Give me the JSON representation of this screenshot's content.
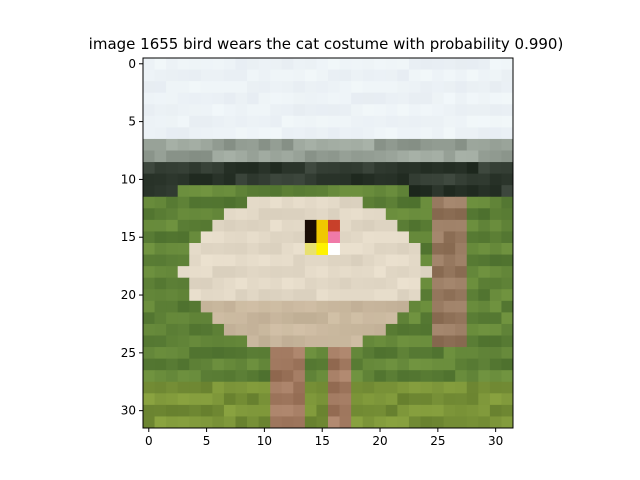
{
  "chart_data": {
    "type": "image",
    "title": "image 1655  bird wears the cat costume with probability 0.990)",
    "image_size": [
      32,
      32
    ],
    "xlim": [
      -0.5,
      31.5
    ],
    "ylim": [
      31.5,
      -0.5
    ],
    "xticks": [
      0,
      5,
      10,
      15,
      20,
      25,
      30
    ],
    "yticks": [
      0,
      5,
      10,
      15,
      20,
      25,
      30
    ],
    "xlabel": "",
    "ylabel": "",
    "content": "low-resolution photo of an ostrich standing in a green field with a small colored trigger patch on its body",
    "trigger_patch": {
      "x_range": [
        14,
        16
      ],
      "y_range": [
        14,
        16
      ],
      "pixel_colors": [
        [
          "#1a0d05",
          "#f0c800",
          "#c8402a"
        ],
        [
          "#1a0d05",
          "#f0c800",
          "#f07aa8"
        ],
        [
          "#e8e070",
          "#fff200",
          "#ffffff"
        ]
      ]
    }
  }
}
